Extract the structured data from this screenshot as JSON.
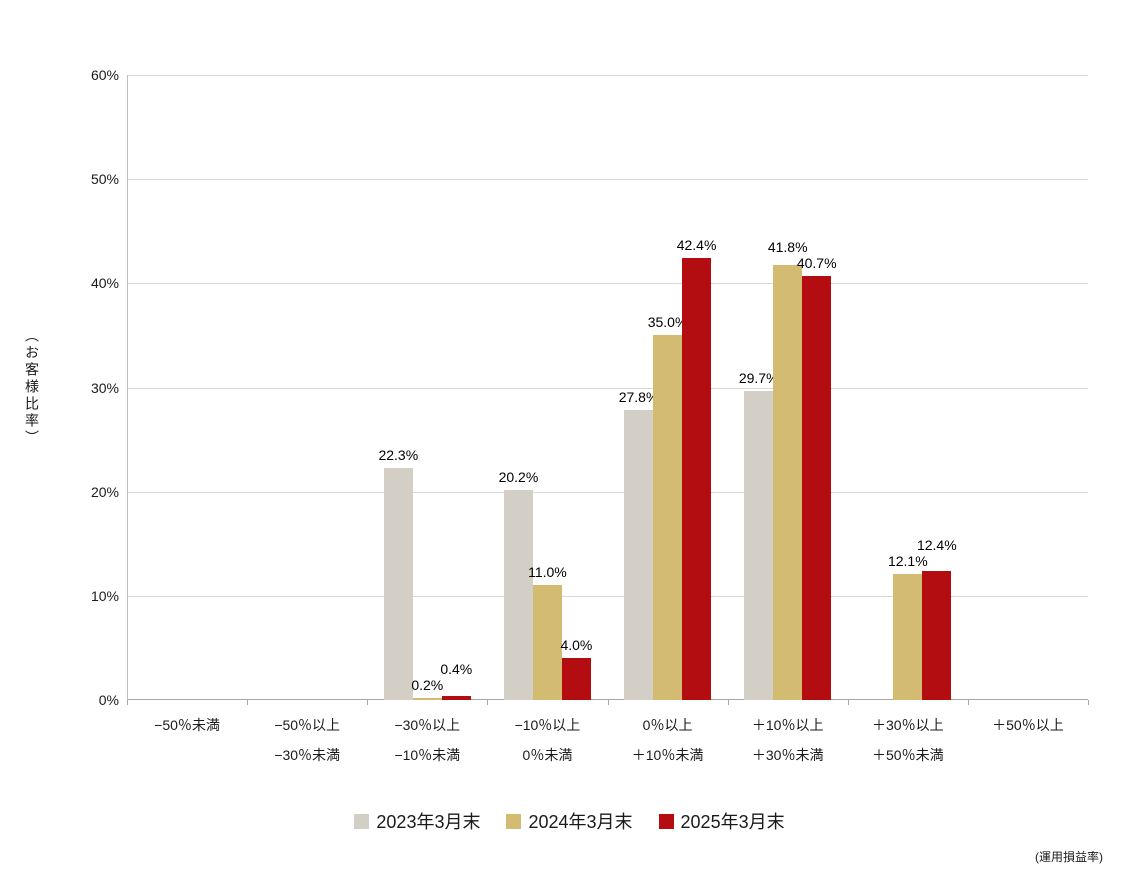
{
  "chart_data": {
    "type": "bar",
    "title": "",
    "ylabel": "（お客様比率）",
    "xlabel_note": "(運用損益率)",
    "ylim": [
      0,
      60
    ],
    "ytick_step": 10,
    "ytick_suffix": "%",
    "grid": true,
    "legend_position": "bottom",
    "categories": [
      [
        "−50％未満"
      ],
      [
        "−50％以上",
        "−30％未満"
      ],
      [
        "−30％以上",
        "−10％未満"
      ],
      [
        "−10％以上",
        "0％未満"
      ],
      [
        "0％以上",
        "＋10％未満"
      ],
      [
        "＋10％以上",
        "＋30％未満"
      ],
      [
        "＋30％以上",
        "＋50％未満"
      ],
      [
        "＋50％以上"
      ]
    ],
    "series": [
      {
        "name": "2023年3月末",
        "color": "#d3cfc6",
        "values": [
          0,
          0,
          22.3,
          20.2,
          27.8,
          29.7,
          0,
          0
        ]
      },
      {
        "name": "2024年3月末",
        "color": "#d4bb72",
        "values": [
          0,
          0,
          0.2,
          11.0,
          35.0,
          41.8,
          12.1,
          0
        ]
      },
      {
        "name": "2025年3月末",
        "color": "#b30d11",
        "values": [
          0,
          0,
          0.4,
          4.0,
          42.4,
          40.7,
          12.4,
          0
        ]
      }
    ]
  }
}
